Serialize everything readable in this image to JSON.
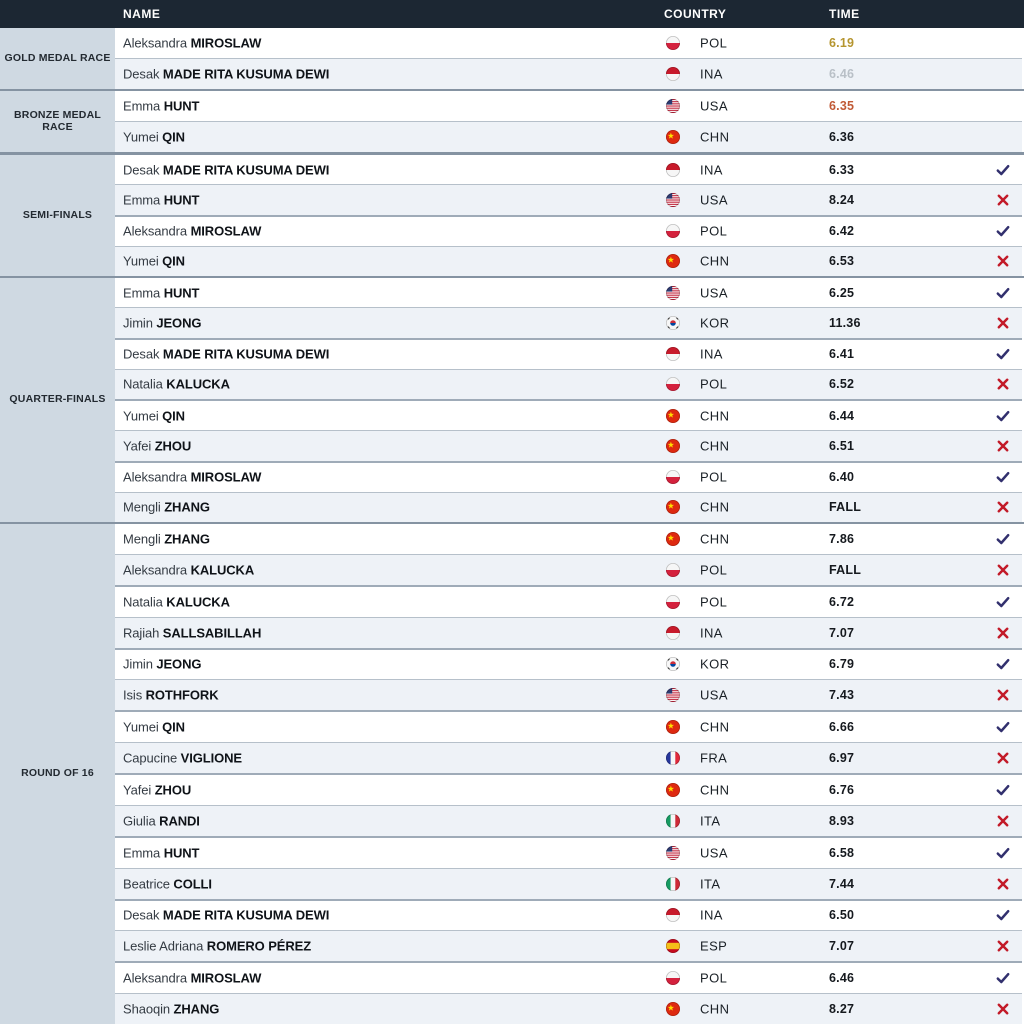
{
  "table": {
    "headers": {
      "name": "NAME",
      "country": "COUNTRY",
      "time": "TIME"
    },
    "sections": [
      {
        "label": "GOLD MEDAL RACE",
        "rows": [
          {
            "first": "Aleksandra",
            "last": "MIROSLAW",
            "country": "POL",
            "time": "6.19",
            "time_style": "gold",
            "result": null
          },
          {
            "first": "Desak",
            "last": "MADE RITA KUSUMA DEWI",
            "country": "INA",
            "time": "6.46",
            "time_style": "silver",
            "result": null
          }
        ]
      },
      {
        "label": "BRONZE MEDAL RACE",
        "rows": [
          {
            "first": "Emma",
            "last": "HUNT",
            "country": "USA",
            "time": "6.35",
            "time_style": "bronze",
            "result": null
          },
          {
            "first": "Yumei",
            "last": "QIN",
            "country": "CHN",
            "time": "6.36",
            "time_style": "normal",
            "result": null
          }
        ]
      },
      {
        "label": "SEMI-FINALS",
        "rows": [
          {
            "first": "Desak",
            "last": "MADE RITA KUSUMA DEWI",
            "country": "INA",
            "time": "6.33",
            "time_style": "normal",
            "result": "win"
          },
          {
            "first": "Emma",
            "last": "HUNT",
            "country": "USA",
            "time": "8.24",
            "time_style": "normal",
            "result": "loss"
          },
          {
            "first": "Aleksandra",
            "last": "MIROSLAW",
            "country": "POL",
            "time": "6.42",
            "time_style": "normal",
            "result": "win"
          },
          {
            "first": "Yumei",
            "last": "QIN",
            "country": "CHN",
            "time": "6.53",
            "time_style": "normal",
            "result": "loss"
          }
        ]
      },
      {
        "label": "QUARTER-FINALS",
        "rows": [
          {
            "first": "Emma",
            "last": "HUNT",
            "country": "USA",
            "time": "6.25",
            "time_style": "normal",
            "result": "win"
          },
          {
            "first": "Jimin",
            "last": "JEONG",
            "country": "KOR",
            "time": "11.36",
            "time_style": "normal",
            "result": "loss"
          },
          {
            "first": "Desak",
            "last": "MADE RITA KUSUMA DEWI",
            "country": "INA",
            "time": "6.41",
            "time_style": "normal",
            "result": "win"
          },
          {
            "first": "Natalia",
            "last": "KALUCKA",
            "country": "POL",
            "time": "6.52",
            "time_style": "normal",
            "result": "loss"
          },
          {
            "first": "Yumei",
            "last": "QIN",
            "country": "CHN",
            "time": "6.44",
            "time_style": "normal",
            "result": "win"
          },
          {
            "first": "Yafei",
            "last": "ZHOU",
            "country": "CHN",
            "time": "6.51",
            "time_style": "normal",
            "result": "loss"
          },
          {
            "first": "Aleksandra",
            "last": "MIROSLAW",
            "country": "POL",
            "time": "6.40",
            "time_style": "normal",
            "result": "win"
          },
          {
            "first": "Mengli",
            "last": "ZHANG",
            "country": "CHN",
            "time": "FALL",
            "time_style": "normal",
            "result": "loss"
          }
        ]
      },
      {
        "label": "ROUND OF 16",
        "rows": [
          {
            "first": "Mengli",
            "last": "ZHANG",
            "country": "CHN",
            "time": "7.86",
            "time_style": "normal",
            "result": "win"
          },
          {
            "first": "Aleksandra",
            "last": "KALUCKA",
            "country": "POL",
            "time": "FALL",
            "time_style": "normal",
            "result": "loss"
          },
          {
            "first": "Natalia",
            "last": "KALUCKA",
            "country": "POL",
            "time": "6.72",
            "time_style": "normal",
            "result": "win"
          },
          {
            "first": "Rajiah",
            "last": "SALLSABILLAH",
            "country": "INA",
            "time": "7.07",
            "time_style": "normal",
            "result": "loss"
          },
          {
            "first": "Jimin",
            "last": "JEONG",
            "country": "KOR",
            "time": "6.79",
            "time_style": "normal",
            "result": "win"
          },
          {
            "first": "Isis",
            "last": "ROTHFORK",
            "country": "USA",
            "time": "7.43",
            "time_style": "normal",
            "result": "loss"
          },
          {
            "first": "Yumei",
            "last": "QIN",
            "country": "CHN",
            "time": "6.66",
            "time_style": "normal",
            "result": "win"
          },
          {
            "first": "Capucine",
            "last": "VIGLIONE",
            "country": "FRA",
            "time": "6.97",
            "time_style": "normal",
            "result": "loss"
          },
          {
            "first": "Yafei",
            "last": "ZHOU",
            "country": "CHN",
            "time": "6.76",
            "time_style": "normal",
            "result": "win"
          },
          {
            "first": "Giulia",
            "last": "RANDI",
            "country": "ITA",
            "time": "8.93",
            "time_style": "normal",
            "result": "loss"
          },
          {
            "first": "Emma",
            "last": "HUNT",
            "country": "USA",
            "time": "6.58",
            "time_style": "normal",
            "result": "win"
          },
          {
            "first": "Beatrice",
            "last": "COLLI",
            "country": "ITA",
            "time": "7.44",
            "time_style": "normal",
            "result": "loss"
          },
          {
            "first": "Desak",
            "last": "MADE RITA KUSUMA DEWI",
            "country": "INA",
            "time": "6.50",
            "time_style": "normal",
            "result": "win"
          },
          {
            "first": "Leslie Adriana",
            "last": "ROMERO PÉREZ",
            "country": "ESP",
            "time": "7.07",
            "time_style": "normal",
            "result": "loss"
          },
          {
            "first": "Aleksandra",
            "last": "MIROSLAW",
            "country": "POL",
            "time": "6.46",
            "time_style": "normal",
            "result": "win"
          },
          {
            "first": "Shaoqin",
            "last": "ZHANG",
            "country": "CHN",
            "time": "8.27",
            "time_style": "normal",
            "result": "loss"
          }
        ]
      }
    ]
  },
  "colors": {
    "header_bg": "#1c2733",
    "sidebar_bg": "#cfd9e2",
    "row_alt_bg": "#eef2f7",
    "section_border": "#8593a2",
    "pair_border": "#9fabb8",
    "row_border": "#b6c0ca",
    "time_gold": "#b5952f",
    "time_silver": "#b9c0c7",
    "time_bronze": "#c15a36",
    "time_normal": "#15191e",
    "win_check": "#32306e",
    "loss_cross": "#c21a28"
  }
}
